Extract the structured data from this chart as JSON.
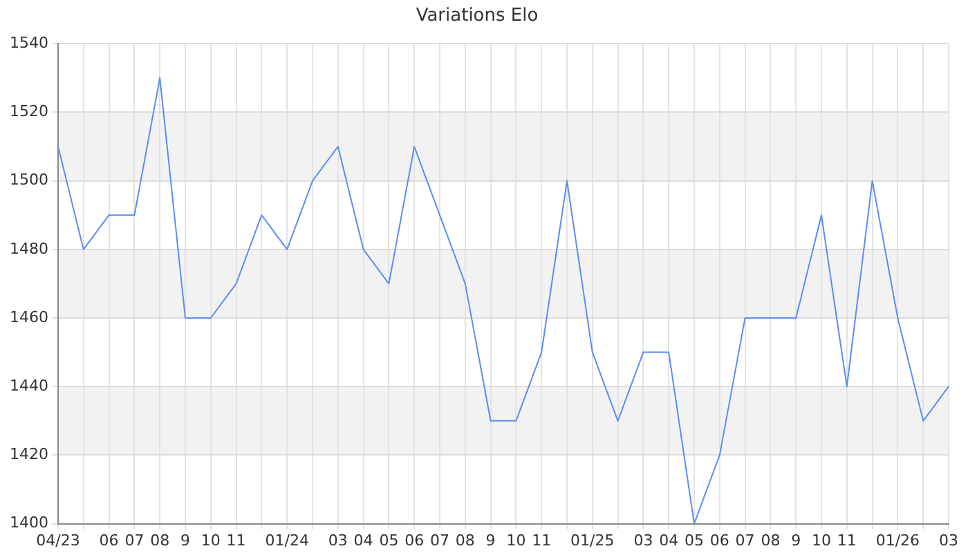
{
  "chart_data": {
    "type": "line",
    "title": "Variations Elo",
    "categories": [
      "04/23",
      null,
      "06",
      "07",
      "08",
      "9",
      "10",
      "11",
      null,
      "01/24",
      null,
      "03",
      "04",
      "05",
      "06",
      "07",
      "08",
      "9",
      "10",
      "11",
      null,
      "01/25",
      null,
      "03",
      "04",
      "05",
      "06",
      "07",
      "08",
      "9",
      "10",
      "11",
      null,
      "01/26",
      null,
      "03"
    ],
    "series": [
      {
        "color": "#5b8def",
        "values": [
          1510,
          1480,
          1490,
          1490,
          1530,
          1460,
          1460,
          1470,
          1490,
          1480,
          1500,
          1510,
          1480,
          1470,
          1510,
          1490,
          1470,
          1430,
          1430,
          1450,
          1500,
          1450,
          1430,
          1450,
          1450,
          1400,
          1420,
          1460,
          1460,
          1460,
          1490,
          1440,
          1500,
          1460,
          1430,
          1440
        ]
      }
    ],
    "ylim": [
      1400,
      1540
    ],
    "yticks": [
      1400,
      1420,
      1440,
      1460,
      1480,
      1500,
      1520,
      1540
    ],
    "grid": true,
    "legend": false,
    "marker": "none",
    "line_style": "solid"
  }
}
